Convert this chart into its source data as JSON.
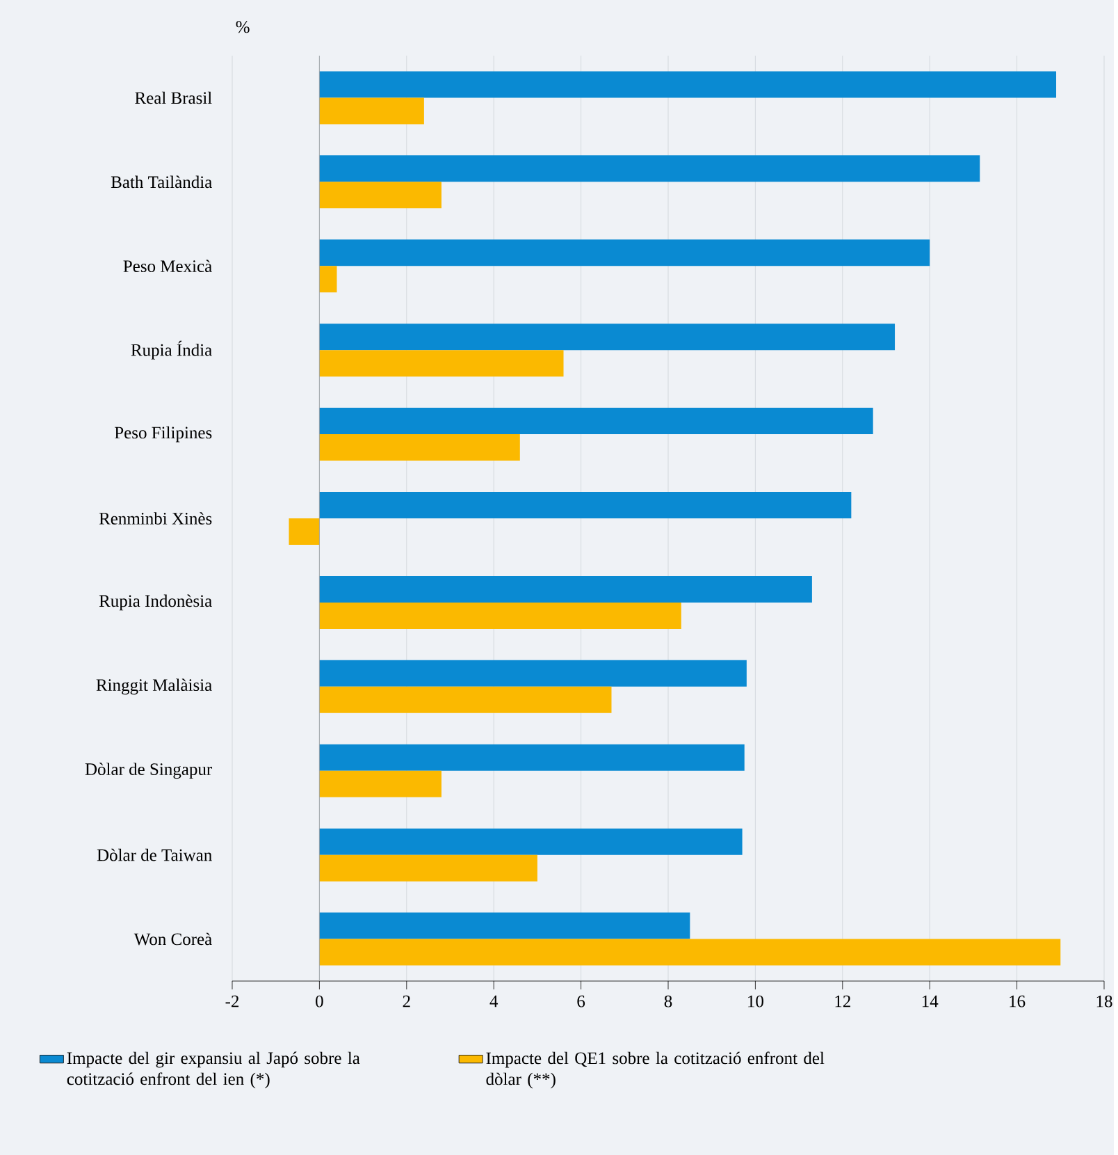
{
  "chart_data": {
    "type": "bar",
    "orientation": "horizontal",
    "xlabel": "%",
    "categories": [
      "Real Brasil",
      "Bath Tailàndia",
      "Peso Mexicà",
      "Rupia Índia",
      "Peso Filipines",
      "Renminbi Xinès",
      "Rupia Indonèsia",
      "Ringgit Malàisia",
      "Dòlar de Singapur",
      "Dòlar de Taiwan",
      "Won Coreà"
    ],
    "series": [
      {
        "name": "Impacte del gir expansiu al Japó sobre la cotització enfront del ien (*)",
        "color": "#0a8ad2",
        "values": [
          16.9,
          15.15,
          14.0,
          13.2,
          12.7,
          12.2,
          11.3,
          9.8,
          9.75,
          9.7,
          8.5
        ]
      },
      {
        "name": "Impacte del QE1 sobre la cotització enfront del dòlar (**)",
        "color": "#fbb900",
        "values": [
          2.4,
          2.8,
          0.4,
          5.6,
          4.6,
          -0.7,
          8.3,
          6.7,
          2.8,
          5.0,
          17.0
        ]
      }
    ],
    "xlim": [
      -2,
      18
    ],
    "xticks": [
      -2,
      0,
      2,
      4,
      6,
      8,
      10,
      12,
      14,
      16,
      18
    ],
    "grid": "x",
    "legend": "bottom"
  }
}
